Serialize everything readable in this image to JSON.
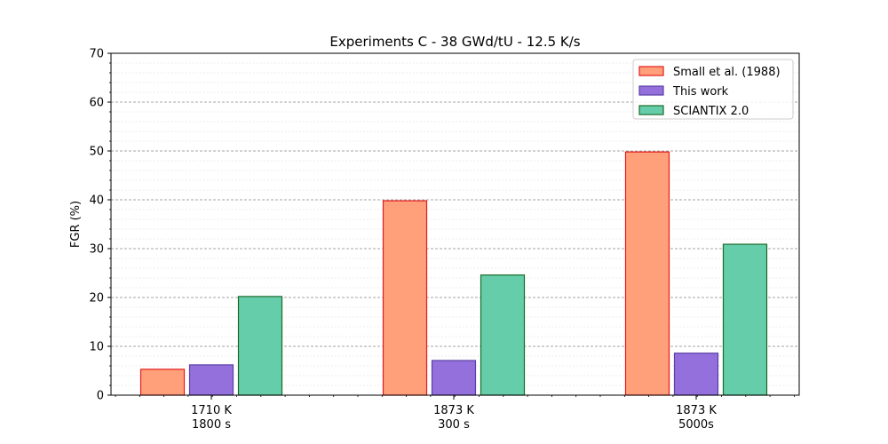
{
  "chart_data": {
    "type": "bar",
    "title": "Experiments C - 38 GWd/tU - 12.5 K/s",
    "xlabel": "",
    "ylabel": "FGR (%)",
    "ylim": [
      0,
      70
    ],
    "yticks": [
      0,
      10,
      20,
      30,
      40,
      50,
      60,
      70
    ],
    "grid": true,
    "legend_position": "top-right",
    "categories": [
      [
        "1710 K",
        "1800 s"
      ],
      [
        "1873 K",
        "300 s"
      ],
      [
        "1873 K",
        "5000s"
      ]
    ],
    "series": [
      {
        "name": "Small et al. (1988)",
        "values": [
          5.3,
          39.8,
          49.8
        ],
        "fill": "#ffa07a",
        "edge": "#e41a1c"
      },
      {
        "name": "This work",
        "values": [
          6.2,
          7.1,
          8.6
        ],
        "fill": "#9370db",
        "edge": "#5b3fa6"
      },
      {
        "name": "SCIANTIX 2.0",
        "values": [
          20.2,
          24.6,
          30.9
        ],
        "fill": "#66cdaa",
        "edge": "#1a6b2a"
      }
    ]
  }
}
